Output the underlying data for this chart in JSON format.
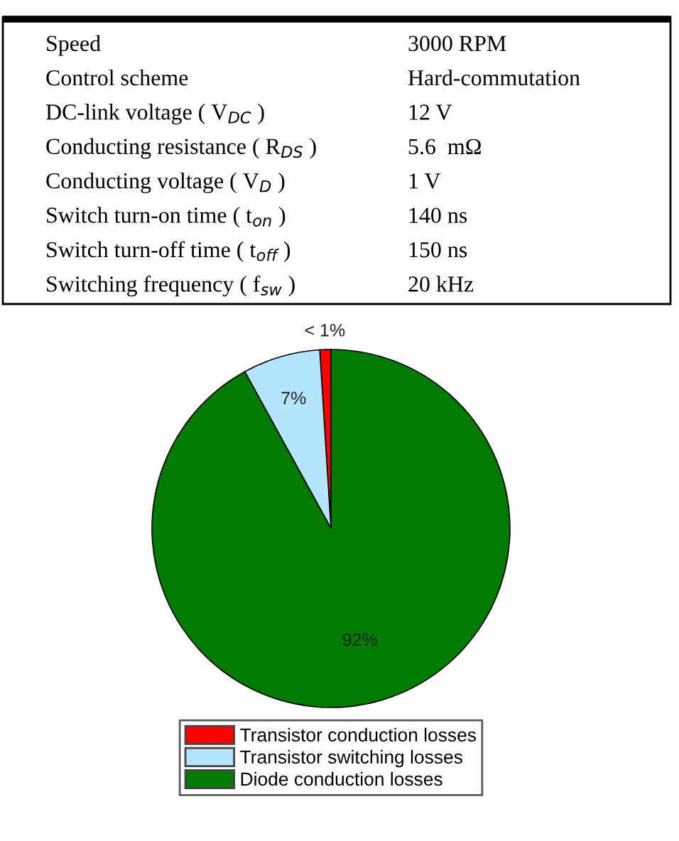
{
  "chart_data": [
    {
      "type": "other",
      "y_categories": [
        "Speed",
        "Control scheme",
        "DC-link voltage ( V$_{DC}$ )",
        "Conducting resistance ( R$_{DS}$ )",
        "Conducting voltage ( V$_{D}$ )",
        "Switch turn-on time ( t$_{on}$ )",
        "Switch turn-off time ( t$_{off}$ )",
        "Switching frequency ( f$_{sw}$ )"
      ],
      "cell_labels": [
        [
          "3000 RPM"
        ],
        [
          "Hard-commutation"
        ],
        [
          "12 V"
        ],
        [
          "5.6  mΩ"
        ],
        [
          "1 V"
        ],
        [
          "140 ns"
        ],
        [
          "150 ns"
        ],
        [
          "20 kHz"
        ]
      ]
    },
    {
      "type": "pie",
      "categories": [
        "Transistor conduction losses",
        "Transistor switching losses",
        "Diode conduction losses"
      ],
      "values": [
        1,
        7,
        92
      ],
      "colors": [
        "#ff0000",
        "#b3e6fa",
        "#007a00"
      ],
      "value_labels": [
        "< 1%",
        "7%",
        "92%"
      ],
      "legend": "bottom"
    }
  ]
}
